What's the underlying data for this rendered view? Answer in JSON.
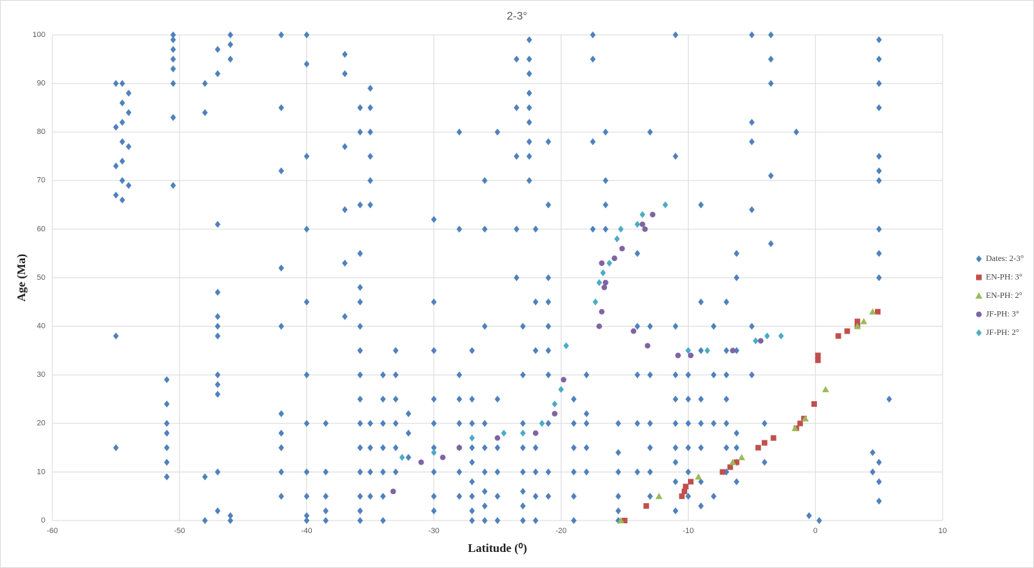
{
  "chart_data": {
    "type": "scatter",
    "title": "2-3°",
    "x_label": "Latitude (⁰)",
    "y_label": "Age (Ma)",
    "xlim": [
      -60,
      10
    ],
    "xticks": [
      -60,
      -50,
      -40,
      -30,
      -20,
      -10,
      0,
      10
    ],
    "ylim": [
      0,
      100
    ],
    "yticks": [
      0,
      10,
      20,
      30,
      40,
      50,
      60,
      70,
      80,
      90,
      100
    ],
    "grid": true,
    "legend": "right",
    "series": [
      {
        "name": "Dates: 2-3°",
        "color": "#4f81bd",
        "marker": "diamond",
        "x": [
          -55,
          -55,
          -55,
          -55,
          -55,
          -55,
          -54.5,
          -54.5,
          -54.5,
          -54.5,
          -54.5,
          -54.5,
          -54.5,
          -54,
          -54,
          -54,
          -54,
          -51,
          -51,
          -51,
          -51,
          -51,
          -51,
          -51,
          -50.5,
          -50.5,
          -50.5,
          -50.5,
          -50.5,
          -50.5,
          -50.5,
          -50.5,
          -47,
          -47,
          -47,
          -47,
          -47,
          -47,
          -47,
          -47,
          -47,
          -47,
          -47,
          -47,
          -46,
          -46,
          -46,
          -46,
          -46,
          -48,
          -48,
          -48,
          -48,
          -42,
          -42,
          -42,
          -42,
          -42,
          -42,
          -42,
          -42,
          -42,
          -42,
          -40,
          -40,
          -40,
          -40,
          -40,
          -40,
          -40,
          -40,
          -40,
          -40,
          -40,
          -38.5,
          -38.5,
          -38.5,
          -38.5,
          -38.5,
          -37,
          -37,
          -37,
          -37,
          -37,
          -37,
          -35.8,
          -35.8,
          -35.8,
          -35.8,
          -35.8,
          -35.8,
          -35.8,
          -35.8,
          -35.8,
          -35.8,
          -35.8,
          -35.8,
          -35.8,
          -35.8,
          -35.8,
          -35.8,
          -35,
          -35,
          -35,
          -35,
          -35,
          -35,
          -35,
          -35,
          -35,
          -35,
          -34,
          -34,
          -34,
          -34,
          -34,
          -34,
          -34,
          -33,
          -33,
          -33,
          -33,
          -33,
          -33,
          -32,
          -32,
          -32,
          -30,
          -30,
          -30,
          -30,
          -30,
          -30,
          -30,
          -30,
          -30,
          -28,
          -28,
          -28,
          -28,
          -28,
          -28,
          -28,
          -28,
          -27,
          -27,
          -27,
          -27,
          -27,
          -27,
          -27,
          -27,
          -27,
          -26,
          -26,
          -26,
          -26,
          -26,
          -26,
          -26,
          -26,
          -26,
          -25,
          -25,
          -25,
          -25,
          -25,
          -25,
          -23.5,
          -23.5,
          -23.5,
          -23.5,
          -23.5,
          -22.5,
          -22.5,
          -22.5,
          -22.5,
          -22.5,
          -22.5,
          -22.5,
          -22.5,
          -22.5,
          -23,
          -23,
          -23,
          -23,
          -23,
          -23,
          -23,
          -23,
          -22,
          -22,
          -22,
          -22,
          -22,
          -22,
          -22,
          -21,
          -21,
          -21,
          -21,
          -21,
          -21,
          -21,
          -21,
          -21,
          -21,
          -19,
          -19,
          -19,
          -19,
          -19,
          -19,
          -18,
          -18,
          -18,
          -18,
          -18,
          -17.5,
          -17.5,
          -17.5,
          -17.5,
          -16.5,
          -16.5,
          -16.5,
          -16.5,
          -15.5,
          -15.5,
          -15.5,
          -15.5,
          -15.5,
          -15.5,
          -14,
          -14,
          -14,
          -14,
          -14,
          -13,
          -13,
          -13,
          -13,
          -13,
          -13,
          -13,
          -11,
          -11,
          -11,
          -11,
          -11,
          -11,
          -11,
          -11,
          -11,
          -11,
          -10,
          -10,
          -10,
          -10,
          -10,
          -10,
          -9,
          -9,
          -9,
          -9,
          -9,
          -9,
          -9,
          -9,
          -8,
          -8,
          -8,
          -8,
          -7,
          -7,
          -7,
          -7,
          -7,
          -7,
          -7,
          -6.2,
          -6.2,
          -6.2,
          -6.2,
          -6.2,
          -6.2,
          -6.2,
          -5,
          -5,
          -5,
          -5,
          -5,
          -5,
          -3.5,
          -3.5,
          -3.5,
          -3.5,
          -3.5,
          -4,
          -4,
          -1.5,
          -0.5,
          0.3,
          5,
          5,
          5,
          5,
          5,
          5,
          5,
          5,
          5,
          5,
          5,
          5,
          5,
          4.5,
          4.5,
          5.8
        ],
        "values": [
          67,
          73,
          81,
          90,
          38,
          15,
          66,
          70,
          74,
          78,
          82,
          86,
          90,
          69,
          77,
          84,
          88,
          9,
          12,
          15,
          18,
          20,
          24,
          29,
          90,
          93,
          95,
          97,
          99,
          100,
          83,
          69,
          2,
          10,
          26,
          28,
          30,
          38,
          40,
          42,
          47,
          61,
          92,
          97,
          0,
          1,
          100,
          95,
          98,
          0,
          9,
          84,
          90,
          100,
          85,
          72,
          52,
          40,
          22,
          18,
          15,
          10,
          5,
          0,
          1,
          5,
          10,
          20,
          30,
          45,
          60,
          75,
          94,
          100,
          0,
          2,
          5,
          10,
          20,
          64,
          77,
          92,
          96,
          53,
          42,
          0,
          2,
          5,
          10,
          15,
          20,
          25,
          30,
          35,
          40,
          45,
          48,
          55,
          65,
          80,
          85,
          65,
          70,
          75,
          80,
          85,
          89,
          20,
          15,
          10,
          5,
          0,
          5,
          10,
          15,
          20,
          25,
          30,
          10,
          15,
          20,
          25,
          30,
          35,
          18,
          22,
          13,
          2,
          5,
          10,
          15,
          20,
          25,
          35,
          45,
          62,
          5,
          10,
          15,
          20,
          25,
          30,
          60,
          80,
          0,
          2,
          5,
          8,
          12,
          15,
          20,
          25,
          35,
          0,
          3,
          6,
          10,
          15,
          20,
          40,
          60,
          70,
          0,
          5,
          10,
          15,
          25,
          80,
          50,
          60,
          75,
          85,
          95,
          70,
          75,
          78,
          82,
          85,
          88,
          92,
          95,
          99,
          0,
          3,
          6,
          10,
          15,
          20,
          30,
          40,
          0,
          5,
          10,
          15,
          35,
          45,
          60,
          5,
          10,
          20,
          30,
          35,
          40,
          45,
          50,
          65,
          78,
          0,
          5,
          10,
          15,
          20,
          25,
          10,
          15,
          20,
          22,
          30,
          60,
          78,
          95,
          100,
          60,
          65,
          70,
          80,
          0,
          2,
          5,
          10,
          14,
          20,
          10,
          20,
          30,
          40,
          55,
          5,
          10,
          15,
          20,
          30,
          40,
          80,
          2,
          8,
          12,
          15,
          20,
          25,
          30,
          40,
          75,
          100,
          5,
          10,
          15,
          20,
          25,
          30,
          3,
          8,
          15,
          20,
          25,
          35,
          45,
          65,
          5,
          20,
          30,
          40,
          10,
          15,
          20,
          25,
          30,
          35,
          45,
          8,
          12,
          15,
          18,
          35,
          50,
          55,
          30,
          40,
          64,
          78,
          82,
          100,
          57,
          71,
          90,
          95,
          100,
          12,
          20,
          80,
          1,
          0,
          4,
          8,
          12,
          50,
          55,
          60,
          70,
          72,
          75,
          85,
          90,
          95,
          99,
          10,
          14,
          25
        ]
      },
      {
        "name": "EN-PH: 3°",
        "color": "#c0504d",
        "marker": "square",
        "x": [
          -15,
          -13.3,
          -10.5,
          -10.3,
          -10.2,
          -9.8,
          -7.3,
          -6.7,
          -6.2,
          -4.5,
          -4,
          -3.3,
          -1.5,
          -1.2,
          -0.9,
          -0.1,
          0.2,
          0.2,
          1.8,
          2.5,
          3.3,
          3.3,
          4.9
        ],
        "values": [
          0,
          3,
          5,
          6,
          7,
          8,
          10,
          11,
          12,
          15,
          16,
          17,
          19,
          20,
          21,
          24,
          33,
          34,
          38,
          39,
          40,
          41,
          43
        ]
      },
      {
        "name": "EN-PH: 2°",
        "color": "#9bbb59",
        "marker": "triangle",
        "x": [
          -15.3,
          -12.3,
          -9.2,
          -6.5,
          -5.8,
          -1.6,
          -0.8,
          0.8,
          3.3,
          3.8,
          4.5
        ],
        "values": [
          0,
          5,
          9,
          12,
          13,
          19,
          21,
          27,
          40,
          41,
          43
        ]
      },
      {
        "name": "JF-PH: 3°",
        "color": "#8064a2",
        "marker": "circle",
        "x": [
          -33.2,
          -31,
          -29.3,
          -28,
          -25,
          -22,
          -20.5,
          -19.8,
          -17,
          -16.8,
          -16.6,
          -16.5,
          -16.8,
          -15.8,
          -15.2,
          -13.4,
          -13.6,
          -12.8,
          -14.3,
          -13.2,
          -9.8,
          -4.3,
          -6.5,
          -10.8
        ],
        "values": [
          6,
          12,
          13,
          15,
          17,
          18,
          22,
          29,
          40,
          43,
          48,
          49,
          53,
          54,
          56,
          60,
          61,
          63,
          39,
          36,
          34,
          37,
          35,
          34
        ]
      },
      {
        "name": "JF-PH: 2°",
        "color": "#4bacc6",
        "marker": "diamond",
        "x": [
          -32.5,
          -30,
          -27,
          -24.5,
          -23,
          -21.5,
          -20.5,
          -20,
          -19.6,
          -17.3,
          -17,
          -16.7,
          -16.2,
          -15.6,
          -15.3,
          -14,
          -13.6,
          -11.8,
          -3.8,
          -2.7,
          -10,
          -8.5,
          -4.7
        ],
        "values": [
          13,
          14,
          17,
          18,
          18,
          20,
          24,
          27,
          36,
          45,
          49,
          51,
          53,
          58,
          60,
          61,
          63,
          65,
          38,
          38,
          35,
          35,
          37
        ]
      }
    ]
  }
}
